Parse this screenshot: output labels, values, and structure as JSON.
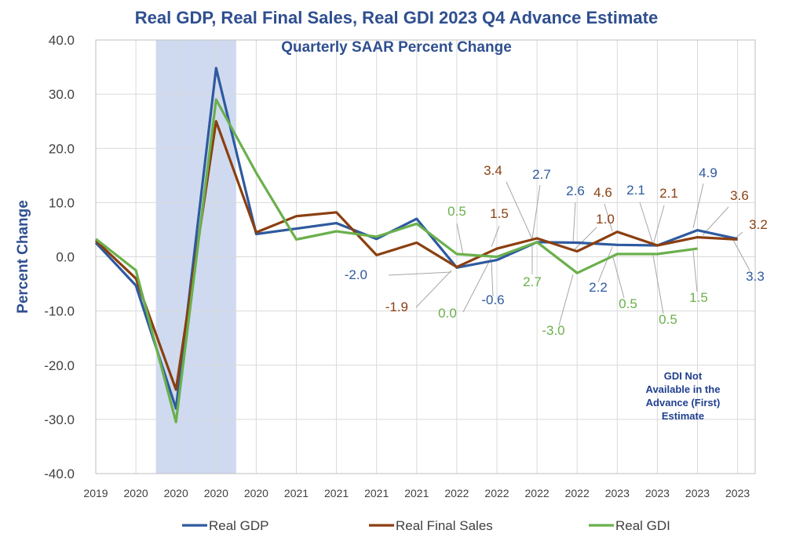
{
  "chart_data": {
    "type": "line",
    "title": "Real GDP, Real Final Sales, Real GDI 2023 Q4 Advance Estimate",
    "subtitle": "Quarterly SAAR Percent Change",
    "ylabel": "Percent Change",
    "xlabel": "",
    "ylim": [
      -40,
      40
    ],
    "y_ticks": [
      "40.0",
      "30.0",
      "20.0",
      "10.0",
      "0.0",
      "-10.0",
      "-20.0",
      "-30.0",
      "-40.0"
    ],
    "categories": [
      "2019",
      "2020",
      "2020",
      "2020",
      "2020",
      "2021",
      "2021",
      "2021",
      "2021",
      "2022",
      "2022",
      "2022",
      "2022",
      "2023",
      "2023",
      "2023",
      "2023"
    ],
    "recession_shading": {
      "from_index": 1.5,
      "to_index": 3.5,
      "color": "#cfdaf1"
    },
    "series": [
      {
        "name": "Real GDP",
        "color": "#2e5a9e",
        "values": [
          2.6,
          -5.3,
          -28.0,
          34.8,
          4.2,
          5.2,
          6.2,
          3.3,
          7.0,
          -2.0,
          -0.6,
          2.7,
          2.6,
          2.2,
          2.1,
          4.9,
          3.3
        ]
      },
      {
        "name": "Real Final Sales",
        "color": "#8b3f10",
        "values": [
          3.0,
          -4.0,
          -24.5,
          25.0,
          4.5,
          7.5,
          8.2,
          0.3,
          2.6,
          -1.9,
          1.5,
          3.4,
          1.0,
          4.6,
          2.1,
          3.6,
          3.2
        ]
      },
      {
        "name": "Real GDI",
        "color": "#6ab04c",
        "values": [
          3.3,
          -2.5,
          -30.5,
          29.0,
          15.5,
          3.2,
          4.7,
          3.7,
          6.1,
          0.5,
          0.0,
          2.7,
          -3.0,
          0.5,
          0.5,
          1.5,
          null
        ]
      }
    ],
    "data_labels": [
      {
        "text": "-2.0",
        "series": "Real GDP"
      },
      {
        "text": "-1.9",
        "series": "Real Final Sales"
      },
      {
        "text": "0.0",
        "series": "Real GDI"
      },
      {
        "text": "0.5",
        "series": "Real GDI"
      },
      {
        "text": "1.5",
        "series": "Real Final Sales"
      },
      {
        "text": "-0.6",
        "series": "Real GDP"
      },
      {
        "text": "3.4",
        "series": "Real Final Sales"
      },
      {
        "text": "2.7",
        "series": "Real GDP"
      },
      {
        "text": "2.7",
        "series": "Real GDI"
      },
      {
        "text": "2.6",
        "series": "Real GDP"
      },
      {
        "text": "1.0",
        "series": "Real Final Sales"
      },
      {
        "text": "-3.0",
        "series": "Real GDI"
      },
      {
        "text": "4.6",
        "series": "Real Final Sales"
      },
      {
        "text": "2.2",
        "series": "Real GDP"
      },
      {
        "text": "0.5",
        "series": "Real GDI"
      },
      {
        "text": "2.1",
        "series": "Real GDP"
      },
      {
        "text": "2.1",
        "series": "Real Final Sales"
      },
      {
        "text": "0.5",
        "series": "Real GDI"
      },
      {
        "text": "4.9",
        "series": "Real GDP"
      },
      {
        "text": "1.5",
        "series": "Real GDI"
      },
      {
        "text": "3.6",
        "series": "Real Final Sales"
      },
      {
        "text": "3.2",
        "series": "Real Final Sales"
      },
      {
        "text": "3.3",
        "series": "Real GDP"
      }
    ],
    "annotation": {
      "lines": [
        "GDI Not",
        "Available in the",
        "Advance (First)",
        "Estimate"
      ],
      "color": "#1f3f8f"
    },
    "legend": {
      "position": "bottom"
    },
    "grid": true
  }
}
